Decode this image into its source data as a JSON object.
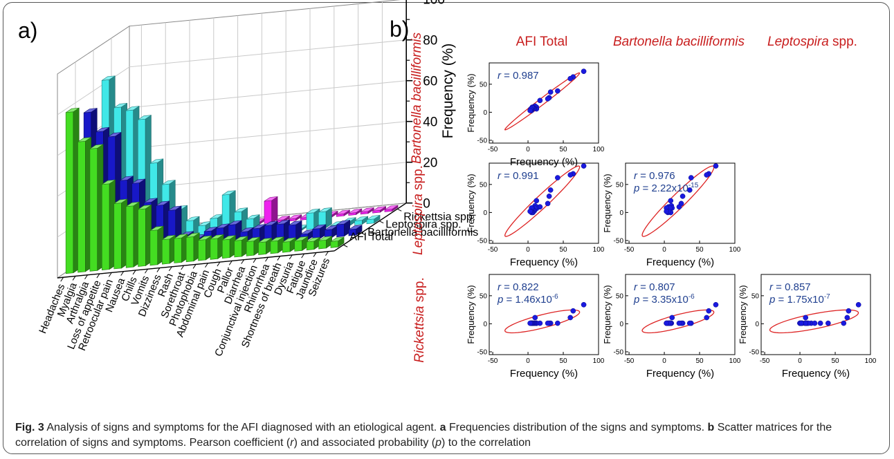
{
  "chart_data": [
    {
      "type": "bar",
      "panel_label": "a)",
      "zlabel": "Frequency (%)",
      "zlim": [
        0,
        100
      ],
      "zticks": [
        0,
        20,
        40,
        60,
        80,
        100
      ],
      "categories": [
        "Headaches",
        "Myalgia",
        "Arthralgia",
        "Loss of appetite",
        "Retroocular pain",
        "Nausea",
        "Chills",
        "Vomits",
        "Dizziness",
        "Rash",
        "Sorethroat",
        "Photophobia",
        "Abdominal pain",
        "Cough",
        "Pallor",
        "Diarrhea",
        "Conjunctival injection",
        "Rhinorrhea",
        "Shortness of breath",
        "Dysuria",
        "Fatigue",
        "Jaundice",
        "Seizures"
      ],
      "series": [
        {
          "name": "AFI Total",
          "color": "#44dd22",
          "values": [
            79,
            64,
            60,
            42,
            32,
            30,
            28,
            17,
            12,
            12,
            12,
            10,
            10,
            9,
            8,
            7,
            6,
            6,
            5,
            5,
            4,
            4,
            3
          ]
        },
        {
          "name": "Bartonella bacilliformis",
          "color": "#1818c8",
          "values": [
            73,
            63,
            60,
            38,
            36,
            26,
            24,
            21,
            8,
            6,
            9,
            10,
            11,
            7,
            8,
            9,
            9,
            8,
            3,
            5,
            4,
            6,
            3
          ]
        },
        {
          "name": "Leptospira spp.",
          "color": "#40e8e8",
          "values": [
            83,
            69,
            67,
            62,
            40,
            29,
            16,
            10,
            7,
            10,
            21,
            12,
            8,
            3,
            3,
            0,
            0,
            8,
            8,
            0,
            2,
            2,
            2
          ]
        },
        {
          "name": "Rickettsia spp.",
          "color": "#ee22ee",
          "values": [
            34,
            23,
            11,
            1,
            1,
            1,
            1,
            1,
            1,
            1,
            1,
            1,
            11,
            1,
            1,
            1,
            1,
            1,
            1,
            1,
            1,
            1,
            1
          ]
        }
      ]
    },
    {
      "type": "scatter",
      "panel_label": "b)",
      "column_headers": [
        {
          "text": "AFI Total",
          "italic": false
        },
        {
          "text": "Bartonella bacilliformis",
          "italic": true
        },
        {
          "text": "Leptospira spp.",
          "italic": "partial"
        }
      ],
      "row_headers": [
        {
          "text": "Bartonella bacilliformis",
          "italic": true
        },
        {
          "text": "Leptospira spp.",
          "italic": "partial"
        },
        {
          "text": "Rickettsia spp.",
          "italic": "partial"
        }
      ],
      "xlabel": "Frequency (%)",
      "ylabel": "Frequency (%)",
      "xlim": [
        -55,
        100
      ],
      "xticks": [
        -50,
        0,
        50,
        100
      ],
      "ylim": [
        -55,
        88
      ],
      "yticks": [
        -50,
        0,
        50
      ],
      "point_color": "#1a1adf",
      "ellipse_color": "#dd2222",
      "cells": [
        {
          "row": 0,
          "col": 0,
          "r_text": "r = 0.987",
          "p_text": "",
          "points": [
            [
              79,
              73
            ],
            [
              64,
              63
            ],
            [
              60,
              60
            ],
            [
              42,
              38
            ],
            [
              32,
              36
            ],
            [
              30,
              26
            ],
            [
              28,
              24
            ],
            [
              17,
              21
            ],
            [
              12,
              8
            ],
            [
              12,
              6
            ],
            [
              12,
              9
            ],
            [
              10,
              10
            ],
            [
              10,
              11
            ],
            [
              9,
              7
            ],
            [
              8,
              8
            ],
            [
              7,
              9
            ],
            [
              6,
              9
            ],
            [
              6,
              8
            ],
            [
              5,
              3
            ],
            [
              5,
              5
            ],
            [
              4,
              4
            ],
            [
              4,
              6
            ],
            [
              3,
              3
            ]
          ]
        },
        {
          "row": 1,
          "col": 0,
          "r_text": "r = 0.991",
          "p_text": "",
          "points": [
            [
              79,
              83
            ],
            [
              64,
              69
            ],
            [
              60,
              67
            ],
            [
              42,
              62
            ],
            [
              32,
              40
            ],
            [
              30,
              29
            ],
            [
              28,
              16
            ],
            [
              17,
              10
            ],
            [
              12,
              7
            ],
            [
              12,
              10
            ],
            [
              12,
              21
            ],
            [
              10,
              12
            ],
            [
              10,
              8
            ],
            [
              9,
              3
            ],
            [
              8,
              3
            ],
            [
              7,
              0
            ],
            [
              6,
              0
            ],
            [
              6,
              8
            ],
            [
              5,
              8
            ],
            [
              5,
              0
            ],
            [
              4,
              2
            ],
            [
              4,
              2
            ],
            [
              3,
              2
            ]
          ]
        },
        {
          "row": 1,
          "col": 1,
          "r_text": "r = 0.976",
          "p_text": "p = 2.22x10",
          "p_exp": "-15",
          "points": [
            [
              73,
              83
            ],
            [
              63,
              69
            ],
            [
              60,
              67
            ],
            [
              38,
              62
            ],
            [
              36,
              40
            ],
            [
              26,
              29
            ],
            [
              24,
              16
            ],
            [
              21,
              10
            ],
            [
              8,
              7
            ],
            [
              6,
              10
            ],
            [
              9,
              21
            ],
            [
              10,
              12
            ],
            [
              11,
              8
            ],
            [
              7,
              3
            ],
            [
              8,
              3
            ],
            [
              9,
              0
            ],
            [
              9,
              0
            ],
            [
              8,
              8
            ],
            [
              3,
              8
            ],
            [
              5,
              0
            ],
            [
              4,
              2
            ],
            [
              6,
              2
            ],
            [
              3,
              2
            ]
          ]
        },
        {
          "row": 2,
          "col": 0,
          "r_text": "r = 0.822",
          "p_text": "p = 1.46x10",
          "p_exp": "-6",
          "points": [
            [
              79,
              34
            ],
            [
              64,
              23
            ],
            [
              60,
              11
            ],
            [
              42,
              1
            ],
            [
              32,
              1
            ],
            [
              30,
              1
            ],
            [
              28,
              1
            ],
            [
              17,
              1
            ],
            [
              12,
              1
            ],
            [
              12,
              1
            ],
            [
              12,
              1
            ],
            [
              10,
              1
            ],
            [
              10,
              11
            ],
            [
              9,
              1
            ],
            [
              8,
              1
            ],
            [
              7,
              1
            ],
            [
              6,
              1
            ],
            [
              6,
              1
            ],
            [
              5,
              1
            ],
            [
              5,
              1
            ],
            [
              4,
              1
            ],
            [
              4,
              1
            ],
            [
              3,
              1
            ]
          ]
        },
        {
          "row": 2,
          "col": 1,
          "r_text": "r = 0.807",
          "p_text": "p = 3.35x10",
          "p_exp": "-6",
          "points": [
            [
              73,
              34
            ],
            [
              63,
              23
            ],
            [
              60,
              11
            ],
            [
              38,
              1
            ],
            [
              36,
              1
            ],
            [
              26,
              1
            ],
            [
              24,
              1
            ],
            [
              21,
              1
            ],
            [
              8,
              1
            ],
            [
              6,
              1
            ],
            [
              9,
              1
            ],
            [
              10,
              1
            ],
            [
              11,
              11
            ],
            [
              7,
              1
            ],
            [
              8,
              1
            ],
            [
              9,
              1
            ],
            [
              9,
              1
            ],
            [
              8,
              1
            ],
            [
              3,
              1
            ],
            [
              5,
              1
            ],
            [
              4,
              1
            ],
            [
              6,
              1
            ],
            [
              3,
              1
            ]
          ]
        },
        {
          "row": 2,
          "col": 2,
          "r_text": "r = 0.857",
          "p_text": "p = 1.75x10",
          "p_exp": "-7",
          "points": [
            [
              83,
              34
            ],
            [
              69,
              23
            ],
            [
              67,
              11
            ],
            [
              62,
              1
            ],
            [
              40,
              1
            ],
            [
              29,
              1
            ],
            [
              16,
              1
            ],
            [
              10,
              1
            ],
            [
              7,
              1
            ],
            [
              10,
              1
            ],
            [
              21,
              1
            ],
            [
              12,
              1
            ],
            [
              8,
              11
            ],
            [
              3,
              1
            ],
            [
              3,
              1
            ],
            [
              0,
              1
            ],
            [
              0,
              1
            ],
            [
              8,
              1
            ],
            [
              8,
              1
            ],
            [
              0,
              1
            ],
            [
              2,
              1
            ],
            [
              2,
              1
            ],
            [
              2,
              1
            ]
          ]
        }
      ]
    }
  ],
  "caption": {
    "fig_label": "Fig. 3",
    "text1": " Analysis of signs and symptoms for the AFI diagnosed with an etiological agent. ",
    "a_label": "a",
    "text2": " Frequencies distribution of the signs and symptoms. ",
    "b_label": "b",
    "text3": " Scatter matrices for the correlation of signs and symptoms. Pearson coefficient (",
    "r_sym": "r",
    "text4": ") and associated probability (",
    "p_sym": "p",
    "text5": ") to the correlation"
  }
}
